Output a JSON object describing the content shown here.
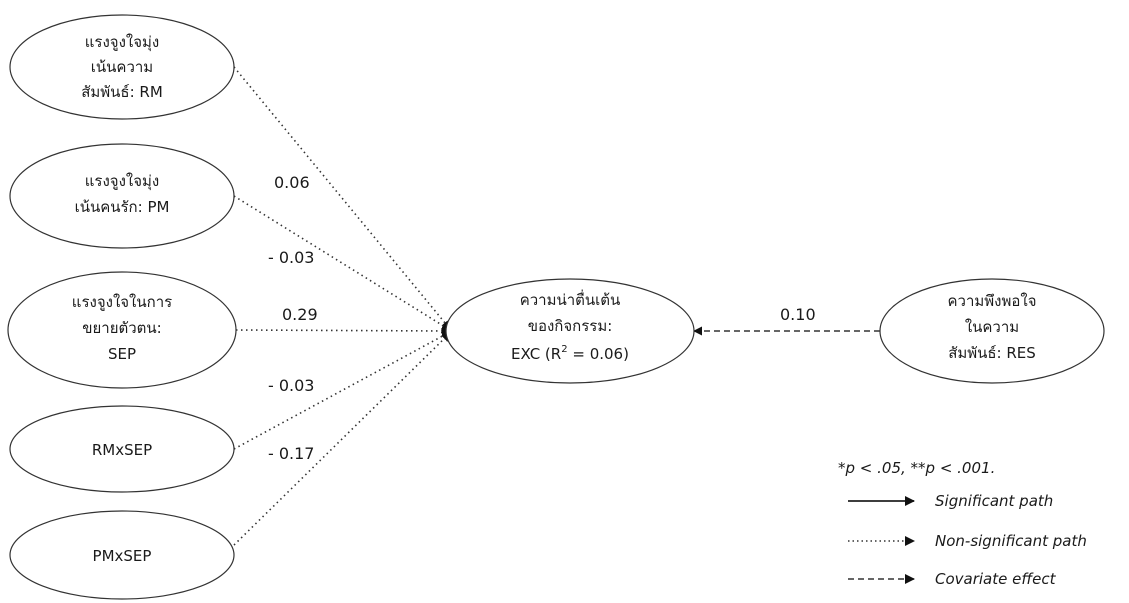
{
  "diagram": {
    "predictors": [
      {
        "id": "rm",
        "lines": [
          "แรงจูงใจมุ่ง",
          "เน้นความ",
          "สัมพันธ์: RM"
        ]
      },
      {
        "id": "pm",
        "lines": [
          "แรงจูงใจมุ่ง",
          "เน้นคนรัก: PM"
        ]
      },
      {
        "id": "sep",
        "lines": [
          "แรงจูงใจในการ",
          "ขยายตัวตน:",
          "SEP"
        ]
      },
      {
        "id": "rmxsep",
        "lines": [
          "RMxSEP"
        ]
      },
      {
        "id": "pmxsep",
        "lines": [
          "PMxSEP"
        ]
      }
    ],
    "outcome": {
      "lines": [
        "ความน่าตื่นเต้น",
        "ของกิจกรรม:"
      ],
      "r2_prefix": "EXC (R",
      "r2_sup": "2",
      "r2_suffix": " = 0.06)"
    },
    "covariate": {
      "lines": [
        "ความพึงพอใจ",
        "ในความ",
        "สัมพันธ์: RES"
      ]
    },
    "path_coefficients": [
      {
        "from": "rm",
        "label": "0.06",
        "style": "non-significant"
      },
      {
        "from": "pm",
        "label": "- 0.03",
        "style": "non-significant"
      },
      {
        "from": "sep",
        "label": "0.29",
        "style": "non-significant"
      },
      {
        "from": "rmxsep",
        "label": "- 0.03",
        "style": "non-significant"
      },
      {
        "from": "pmxsep",
        "label": "- 0.17",
        "style": "non-significant"
      },
      {
        "from": "res",
        "label": "0.10",
        "style": "covariate"
      }
    ]
  },
  "legend": {
    "note_parts": [
      "*",
      "p",
      " < .05, **",
      "p",
      " < .001."
    ],
    "items": [
      {
        "style": "significant",
        "label": "Significant path"
      },
      {
        "style": "non-significant",
        "label": "Non-significant path"
      },
      {
        "style": "covariate",
        "label": "Covariate effect"
      }
    ]
  },
  "colors": {
    "line": "#333333",
    "text": "#1a1a1a",
    "background": "#ffffff"
  }
}
